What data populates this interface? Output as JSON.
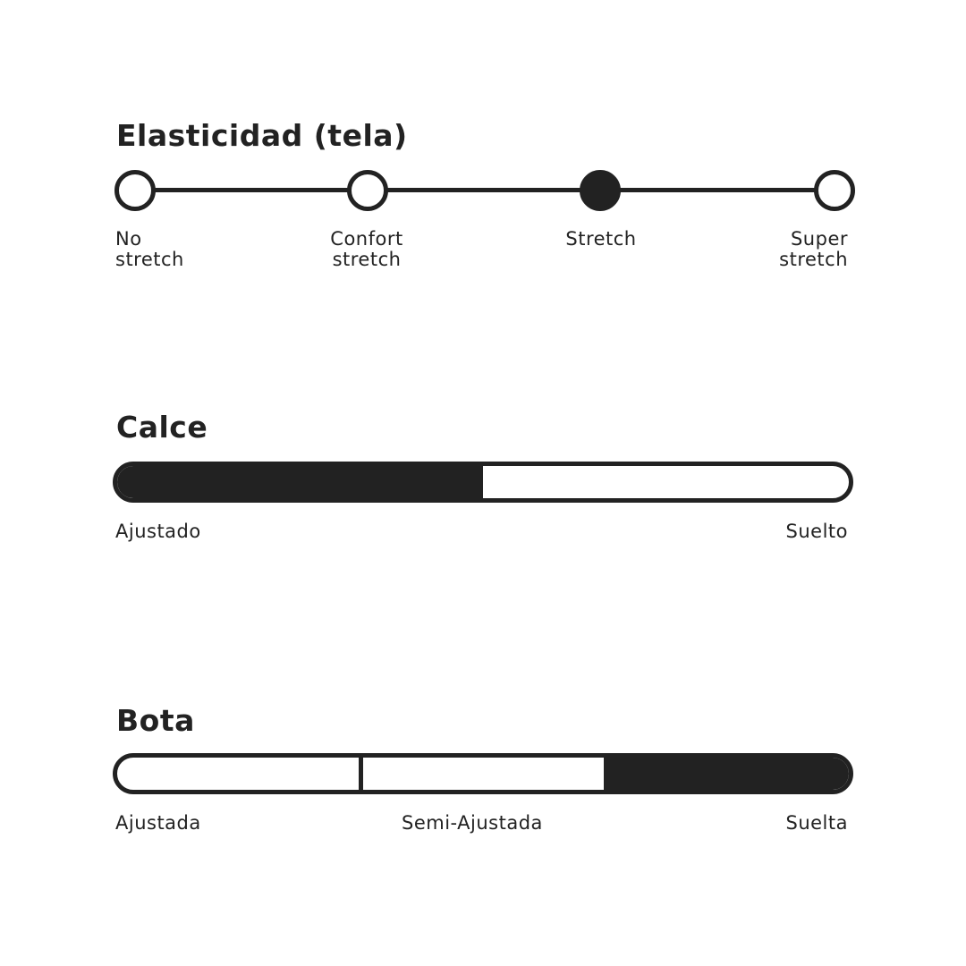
{
  "elasticity": {
    "title": "Elasticidad (tela)",
    "options": [
      {
        "line1": "No",
        "line2": "stretch"
      },
      {
        "line1": "Confort",
        "line2": "stretch"
      },
      {
        "line1": "Stretch",
        "line2": ""
      },
      {
        "line1": "Super",
        "line2": "stretch"
      }
    ],
    "selected_index": 2
  },
  "fit": {
    "title": "Calce",
    "min_label": "Ajustado",
    "max_label": "Suelto",
    "value_percent": 50
  },
  "boot": {
    "title": "Bota",
    "segments": [
      "Ajustada",
      "Semi-Ajustada",
      "Suelta"
    ],
    "selected_index": 2
  },
  "colors": {
    "ink": "#222222",
    "background": "#ffffff"
  }
}
